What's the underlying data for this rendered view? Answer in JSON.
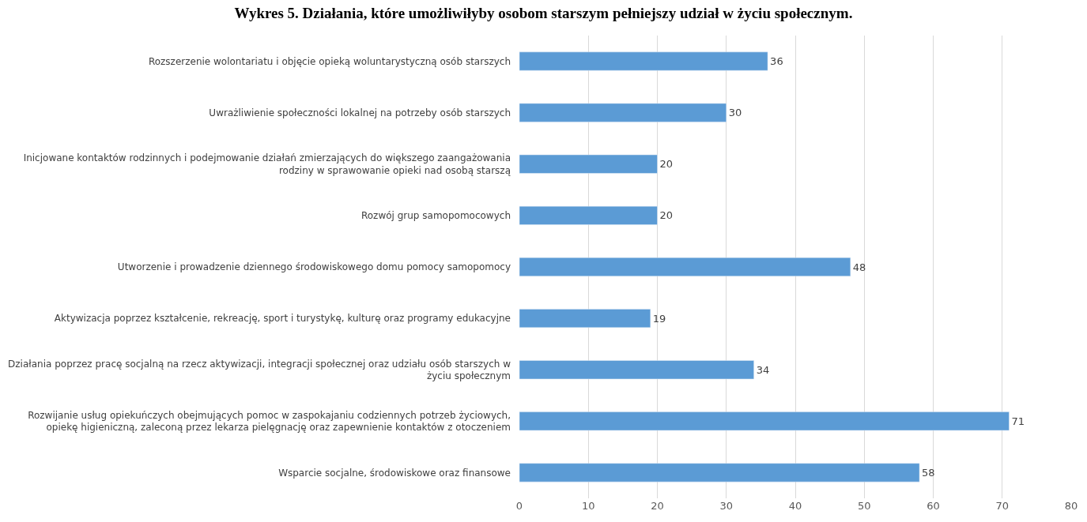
{
  "chart_data": {
    "type": "bar",
    "orientation": "horizontal",
    "title": "Wykres 5. Działania, które umożliwiłyby osobom starszym pełniejszy udział w życiu społecznym.",
    "categories": [
      "Rozszerzenie wolontariatu i objęcie opieką woluntarystyczną osób starszych",
      "Uwrażliwienie społeczności lokalnej na potrzeby osób starszych",
      "Inicjowane kontaktów rodzinnych i podejmowanie działań zmierzających do większego zaangażowania\nrodziny w sprawowanie opieki nad osobą starszą",
      "Rozwój grup samopomocowych",
      "Utworzenie i prowadzenie dziennego środowiskowego domu pomocy samopomocy",
      "Aktywizacja poprzez kształcenie, rekreację, sport i turystykę, kulturę oraz programy edukacyjne",
      "Działania poprzez pracę socjalną na rzecz aktywizacji, integracji społecznej oraz udziału osób starszych w\nżyciu społecznym",
      "Rozwijanie usług opiekuńczych obejmujących pomoc w zaspokajaniu codziennych potrzeb życiowych,\nopiekę higieniczną, zaleconą przez lekarza pielęgnację oraz zapewnienie kontaktów z otoczeniem",
      "Wsparcie socjalne, środowiskowe oraz finansowe"
    ],
    "values": [
      36,
      30,
      20,
      20,
      48,
      19,
      34,
      71,
      58
    ],
    "color": "#5b9bd5",
    "xlim": [
      0,
      80
    ],
    "xticks": [
      0,
      10,
      20,
      30,
      40,
      50,
      60,
      70,
      80
    ],
    "grid": "x",
    "data_labels": true
  }
}
